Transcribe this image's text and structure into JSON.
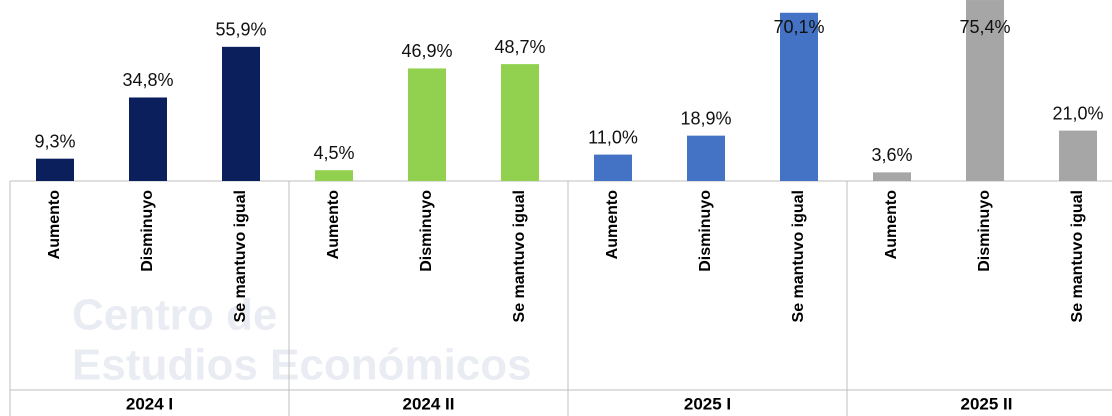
{
  "chart_data": {
    "type": "bar",
    "watermark": [
      "Centro de",
      "Estudios Económicos"
    ],
    "categories": [
      "Aumento",
      "Disminuyo",
      "Se mantuvo igual"
    ],
    "series": [
      {
        "name": "2024 I",
        "color": "#0b1f5c",
        "values": [
          9.3,
          34.8,
          55.9
        ],
        "value_labels": [
          "9,3%",
          "34,8%",
          "55,9%"
        ]
      },
      {
        "name": "2024 II",
        "color": "#92d050",
        "values": [
          4.5,
          46.9,
          48.7
        ],
        "value_labels": [
          "4,5%",
          "46,9%",
          "48,7%"
        ]
      },
      {
        "name": "2025 I",
        "color": "#4472c4",
        "values": [
          11.0,
          18.9,
          70.1
        ],
        "value_labels": [
          "11,0%",
          "18,9%",
          "70,1%"
        ]
      },
      {
        "name": "2025 II",
        "color": "#a6a6a6",
        "values": [
          3.6,
          75.4,
          21.0
        ],
        "value_labels": [
          "3,6%",
          "75,4%",
          "21,0%"
        ]
      }
    ]
  }
}
